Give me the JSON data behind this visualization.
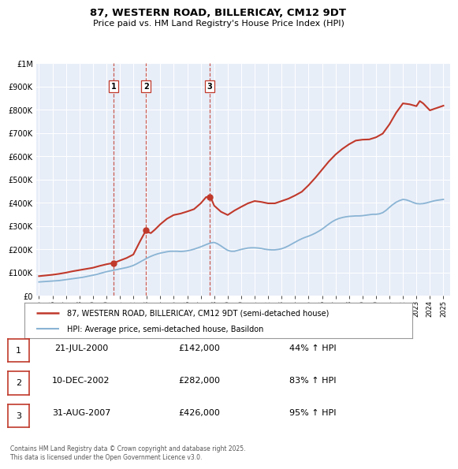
{
  "title": "87, WESTERN ROAD, BILLERICAY, CM12 9DT",
  "subtitle": "Price paid vs. HM Land Registry's House Price Index (HPI)",
  "legend_line1": "87, WESTERN ROAD, BILLERICAY, CM12 9DT (semi-detached house)",
  "legend_line2": "HPI: Average price, semi-detached house, Basildon",
  "footer": "Contains HM Land Registry data © Crown copyright and database right 2025.\nThis data is licensed under the Open Government Licence v3.0.",
  "sale_markers": [
    {
      "id": 1,
      "date": 2000.54,
      "price": 142000,
      "label": "21-JUL-2000",
      "pct": "44%",
      "direction": "↑"
    },
    {
      "id": 2,
      "date": 2002.94,
      "price": 282000,
      "label": "10-DEC-2002",
      "pct": "83%",
      "direction": "↑"
    },
    {
      "id": 3,
      "date": 2007.66,
      "price": 426000,
      "label": "31-AUG-2007",
      "pct": "95%",
      "direction": "↑"
    }
  ],
  "hpi_color": "#8ab4d4",
  "price_color": "#c0392b",
  "vline_color": "#c0392b",
  "background_color": "#ffffff",
  "plot_bg_color": "#e8eef8",
  "ylim": [
    0,
    1000000
  ],
  "xlim_start": 1994.8,
  "xlim_end": 2025.5,
  "hpi_data": {
    "years": [
      1995.0,
      1995.25,
      1995.5,
      1995.75,
      1996.0,
      1996.25,
      1996.5,
      1996.75,
      1997.0,
      1997.25,
      1997.5,
      1997.75,
      1998.0,
      1998.25,
      1998.5,
      1998.75,
      1999.0,
      1999.25,
      1999.5,
      1999.75,
      2000.0,
      2000.25,
      2000.5,
      2000.75,
      2001.0,
      2001.25,
      2001.5,
      2001.75,
      2002.0,
      2002.25,
      2002.5,
      2002.75,
      2003.0,
      2003.25,
      2003.5,
      2003.75,
      2004.0,
      2004.25,
      2004.5,
      2004.75,
      2005.0,
      2005.25,
      2005.5,
      2005.75,
      2006.0,
      2006.25,
      2006.5,
      2006.75,
      2007.0,
      2007.25,
      2007.5,
      2007.75,
      2008.0,
      2008.25,
      2008.5,
      2008.75,
      2009.0,
      2009.25,
      2009.5,
      2009.75,
      2010.0,
      2010.25,
      2010.5,
      2010.75,
      2011.0,
      2011.25,
      2011.5,
      2011.75,
      2012.0,
      2012.25,
      2012.5,
      2012.75,
      2013.0,
      2013.25,
      2013.5,
      2013.75,
      2014.0,
      2014.25,
      2014.5,
      2014.75,
      2015.0,
      2015.25,
      2015.5,
      2015.75,
      2016.0,
      2016.25,
      2016.5,
      2016.75,
      2017.0,
      2017.25,
      2017.5,
      2017.75,
      2018.0,
      2018.25,
      2018.5,
      2018.75,
      2019.0,
      2019.25,
      2019.5,
      2019.75,
      2020.0,
      2020.25,
      2020.5,
      2020.75,
      2021.0,
      2021.25,
      2021.5,
      2021.75,
      2022.0,
      2022.25,
      2022.5,
      2022.75,
      2023.0,
      2023.25,
      2023.5,
      2023.75,
      2024.0,
      2024.25,
      2024.5,
      2024.75,
      2025.0
    ],
    "values": [
      60000,
      61000,
      62000,
      63000,
      64000,
      65000,
      66000,
      68000,
      70000,
      72000,
      74000,
      76000,
      78000,
      80000,
      83000,
      86000,
      89000,
      92000,
      96000,
      100000,
      104000,
      107000,
      110000,
      113000,
      116000,
      119000,
      122000,
      126000,
      131000,
      138000,
      146000,
      154000,
      162000,
      169000,
      175000,
      180000,
      184000,
      187000,
      190000,
      192000,
      192000,
      192000,
      191000,
      192000,
      194000,
      197000,
      201000,
      206000,
      211000,
      217000,
      223000,
      228000,
      230000,
      224000,
      215000,
      205000,
      196000,
      192000,
      192000,
      196000,
      200000,
      203000,
      206000,
      207000,
      207000,
      206000,
      204000,
      201000,
      199000,
      198000,
      198000,
      200000,
      203000,
      208000,
      215000,
      223000,
      231000,
      239000,
      246000,
      252000,
      257000,
      263000,
      270000,
      278000,
      287000,
      298000,
      309000,
      319000,
      327000,
      333000,
      337000,
      340000,
      342000,
      343000,
      344000,
      344000,
      345000,
      347000,
      349000,
      351000,
      351000,
      353000,
      358000,
      368000,
      381000,
      393000,
      403000,
      410000,
      415000,
      413000,
      408000,
      402000,
      397000,
      396000,
      397000,
      400000,
      404000,
      408000,
      411000,
      413000,
      415000
    ]
  },
  "property_data": {
    "years": [
      1995.0,
      1995.5,
      1996.0,
      1996.5,
      1997.0,
      1997.5,
      1998.0,
      1998.5,
      1999.0,
      1999.5,
      2000.0,
      2000.54,
      2000.6,
      2001.0,
      2001.5,
      2002.0,
      2002.5,
      2002.94,
      2003.0,
      2003.3,
      2003.6,
      2004.0,
      2004.5,
      2005.0,
      2005.5,
      2006.0,
      2006.5,
      2007.0,
      2007.4,
      2007.66,
      2007.8,
      2008.0,
      2008.5,
      2009.0,
      2009.5,
      2010.0,
      2010.5,
      2011.0,
      2011.5,
      2012.0,
      2012.5,
      2013.0,
      2013.5,
      2014.0,
      2014.5,
      2015.0,
      2015.5,
      2016.0,
      2016.5,
      2017.0,
      2017.5,
      2018.0,
      2018.5,
      2019.0,
      2019.5,
      2020.0,
      2020.5,
      2021.0,
      2021.5,
      2022.0,
      2022.5,
      2022.75,
      2023.0,
      2023.25,
      2023.5,
      2024.0,
      2024.5,
      2025.0
    ],
    "values": [
      85000,
      88000,
      91000,
      95000,
      100000,
      106000,
      111000,
      116000,
      121000,
      129000,
      136000,
      142000,
      143000,
      152000,
      163000,
      178000,
      235000,
      282000,
      276000,
      270000,
      285000,
      308000,
      332000,
      348000,
      354000,
      363000,
      373000,
      398000,
      425000,
      426000,
      415000,
      388000,
      362000,
      348000,
      367000,
      383000,
      398000,
      408000,
      404000,
      398000,
      398000,
      408000,
      418000,
      432000,
      448000,
      476000,
      508000,
      543000,
      578000,
      608000,
      632000,
      652000,
      668000,
      672000,
      673000,
      682000,
      698000,
      738000,
      788000,
      828000,
      824000,
      820000,
      816000,
      838000,
      828000,
      798000,
      808000,
      818000
    ]
  }
}
